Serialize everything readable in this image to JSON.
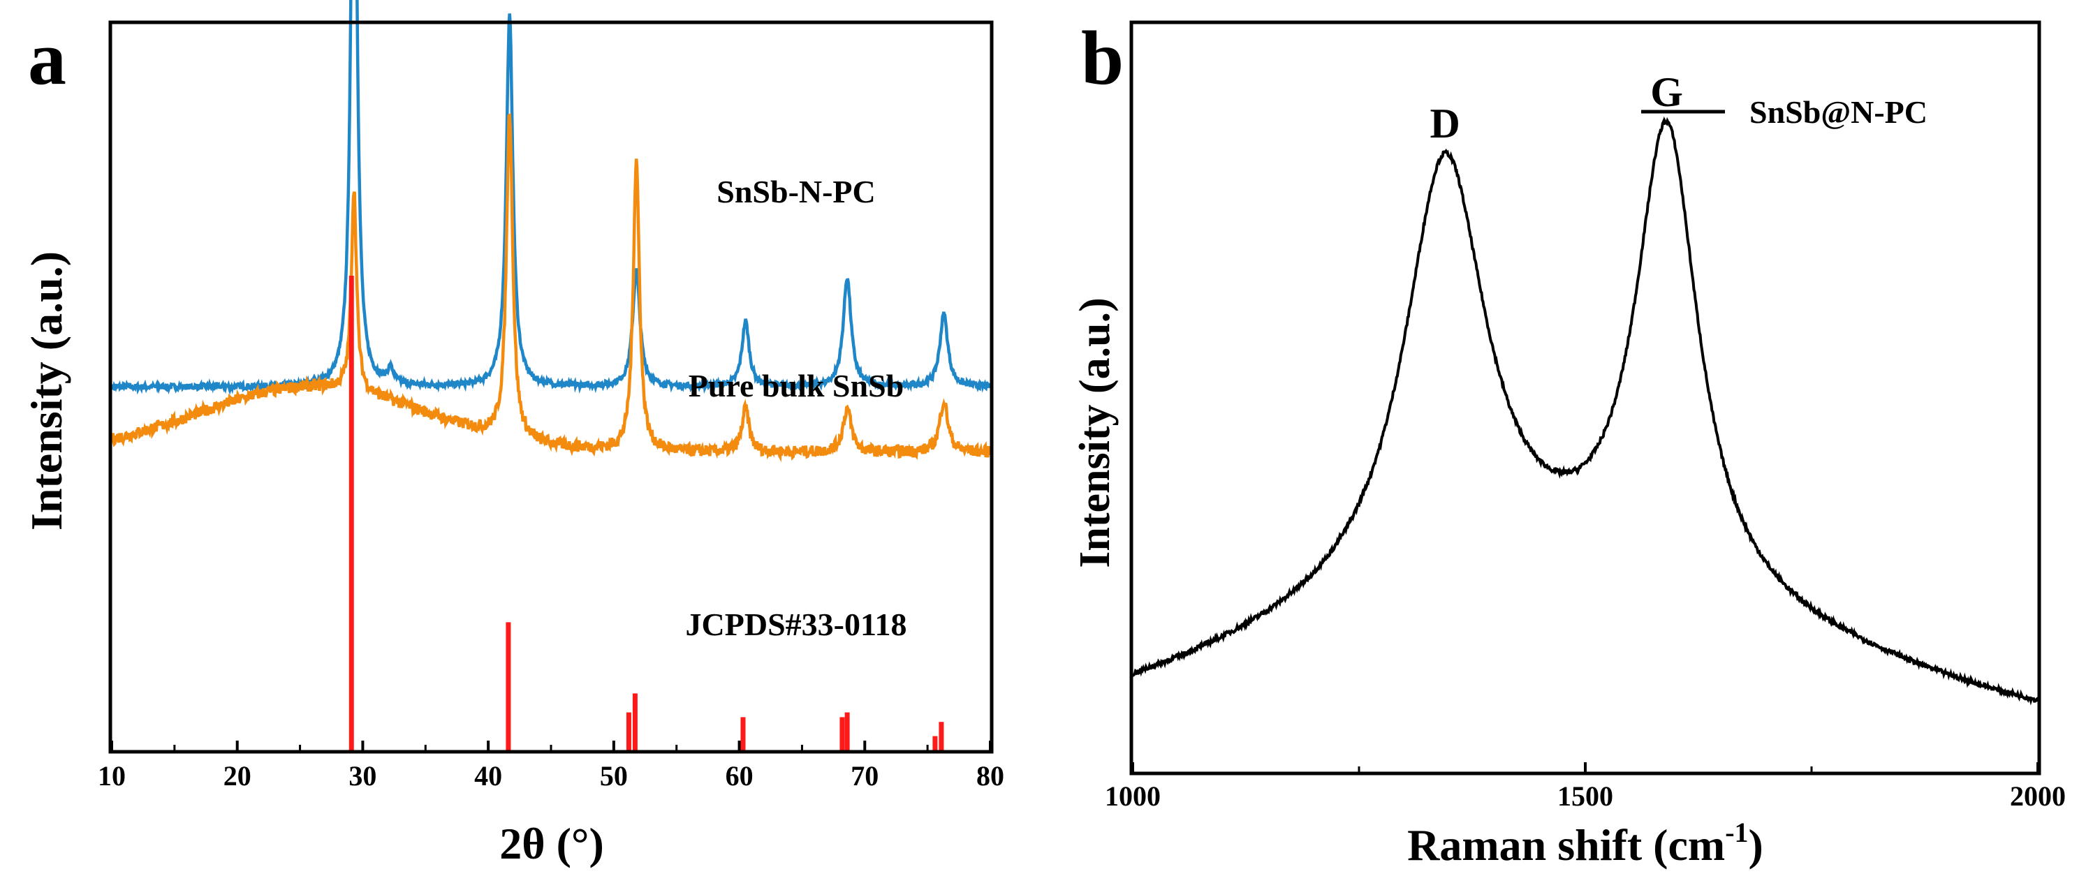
{
  "chart_data": [
    {
      "panel_label": "a",
      "type": "line",
      "title": "",
      "xlabel": "2θ (°)",
      "ylabel": "Intensity (a.u.)",
      "xlim": [
        10,
        80
      ],
      "xticks": [
        10,
        20,
        30,
        40,
        50,
        60,
        70,
        80
      ],
      "ytick_labels": false,
      "grid": false,
      "series": [
        {
          "name": "SnSb-N-PC",
          "color": "#1f86c8",
          "baseline": 0.5,
          "peaks": [
            {
              "x": 29.3,
              "height": 0.97,
              "width": 0.28
            },
            {
              "x": 32.2,
              "height": 0.02,
              "width": 0.3
            },
            {
              "x": 41.7,
              "height": 0.51,
              "width": 0.32
            },
            {
              "x": 51.8,
              "height": 0.16,
              "width": 0.35
            },
            {
              "x": 60.5,
              "height": 0.09,
              "width": 0.35
            },
            {
              "x": 68.6,
              "height": 0.15,
              "width": 0.38
            },
            {
              "x": 76.3,
              "height": 0.1,
              "width": 0.38
            }
          ]
        },
        {
          "name": "Pure bulk SnSb",
          "color": "#f38b0f",
          "baseline": 0.41,
          "hump": {
            "x": 26,
            "height": 0.09,
            "width": 9
          },
          "peaks": [
            {
              "x": 29.3,
              "height": 0.28,
              "width": 0.25
            },
            {
              "x": 41.7,
              "height": 0.45,
              "width": 0.3
            },
            {
              "x": 51.8,
              "height": 0.4,
              "width": 0.3
            },
            {
              "x": 60.5,
              "height": 0.06,
              "width": 0.35
            },
            {
              "x": 68.6,
              "height": 0.06,
              "width": 0.4
            },
            {
              "x": 76.3,
              "height": 0.07,
              "width": 0.4
            }
          ]
        }
      ],
      "reference": {
        "name": "JCPDS#33-0118",
        "color": "#ff1a1a",
        "sticks": [
          {
            "x": 29.1,
            "value": 1.0
          },
          {
            "x": 41.6,
            "value": 0.27
          },
          {
            "x": 51.2,
            "value": 0.08
          },
          {
            "x": 51.7,
            "value": 0.12
          },
          {
            "x": 60.3,
            "value": 0.07
          },
          {
            "x": 68.2,
            "value": 0.07
          },
          {
            "x": 68.6,
            "value": 0.08
          },
          {
            "x": 75.6,
            "value": 0.03
          },
          {
            "x": 76.1,
            "value": 0.06
          }
        ]
      },
      "series_labels": [
        "SnSb-N-PC",
        "Pure bulk SnSb",
        "JCPDS#33-0118"
      ]
    },
    {
      "panel_label": "b",
      "type": "line",
      "title": "",
      "xlabel": "Raman shift (cm",
      "xlabel_superscript": "-1",
      "xlabel_suffix": ")",
      "ylabel": "Intensity (a.u.)",
      "xlim": [
        1000,
        2000
      ],
      "xticks": [
        1000,
        1500,
        2000
      ],
      "ytick_labels": false,
      "grid": false,
      "legend": {
        "label": "SnSb@N-PC",
        "position": "top-right"
      },
      "series": [
        {
          "name": "SnSb@N-PC",
          "color": "#000000",
          "background": {
            "start": 0.04,
            "end": 0.04,
            "broad_center": 1450,
            "broad_height": 0.2,
            "broad_width": 320
          },
          "peaks": [
            {
              "label": "D",
              "x": 1345,
              "height": 0.58,
              "width": 55
            },
            {
              "label": "G",
              "x": 1590,
              "height": 0.62,
              "width": 42
            }
          ]
        }
      ],
      "peak_labels": [
        "D",
        "G"
      ]
    }
  ]
}
